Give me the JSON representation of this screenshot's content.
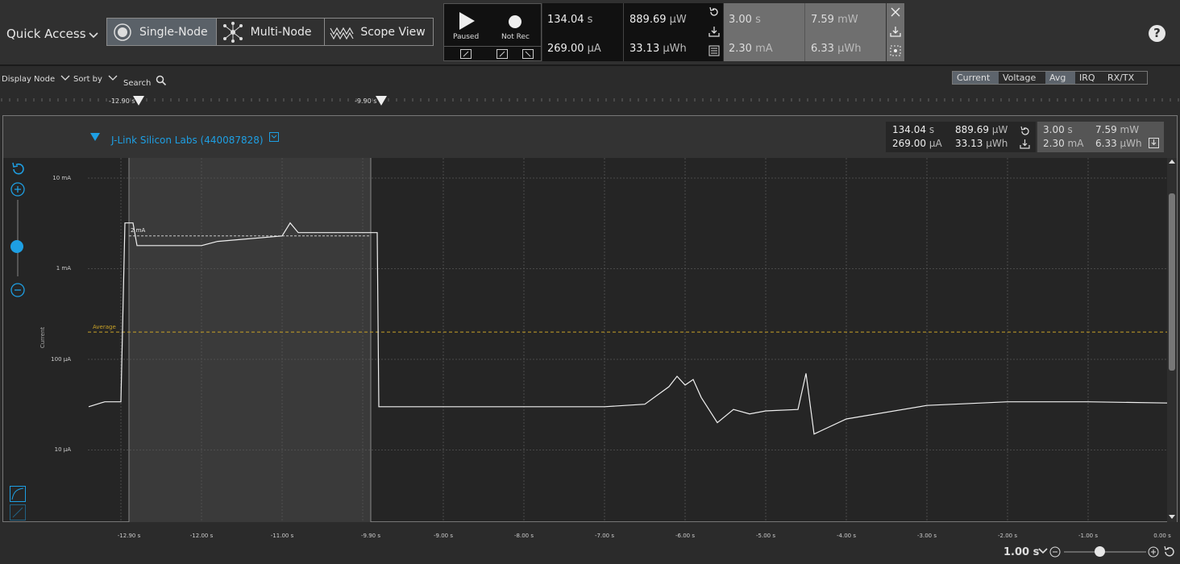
{
  "toolbar": {
    "quick_access": "Quick Access",
    "views": [
      {
        "label": "Single-Node",
        "icon": "single-node-icon",
        "active": true
      },
      {
        "label": "Multi-Node",
        "icon": "multi-node-icon",
        "active": false
      },
      {
        "label": "Scope View",
        "icon": "scope-view-icon",
        "active": false
      }
    ],
    "play_label": "Paused",
    "record_label": "Not Rec",
    "help": "?"
  },
  "measurements": {
    "time_val": "134.04",
    "time_unit": "s",
    "current_val": "269.00",
    "current_unit": "µA",
    "power_val": "889.69",
    "power_unit": "µW",
    "energy_val": "33.13",
    "energy_unit": "µWh",
    "sel_time_val": "3.00",
    "sel_time_unit": "s",
    "sel_power_val": "7.59",
    "sel_power_unit": "mW",
    "sel_current_val": "2.30",
    "sel_current_unit": "mA",
    "sel_energy_val": "6.33",
    "sel_energy_unit": "µWh"
  },
  "toolbar2": {
    "display_node": "Display Node",
    "sort_by": "Sort by",
    "search": "Search",
    "modes": [
      {
        "label": "Current",
        "on": true
      },
      {
        "label": "Voltage",
        "on": false
      },
      {
        "label": "Avg",
        "on": true
      },
      {
        "label": "IRQ",
        "on": false
      },
      {
        "label": "RX/TX",
        "on": false
      }
    ]
  },
  "markers": [
    "-12.90 s",
    "-9.90 s"
  ],
  "node": {
    "title": "J-Link Silicon Labs (440087828)"
  },
  "chart_data": {
    "type": "line",
    "ylabel": "Current",
    "yscale": "log",
    "y_ticks": [
      "10 mA",
      "1 mA",
      "100 µA",
      "10 µA"
    ],
    "x_ticks": [
      "-12.90 s",
      "-12.00 s",
      "-11.00 s",
      "-9.90 s",
      "-9.00 s",
      "-8.00 s",
      "-7.00 s",
      "-6.00 s",
      "-5.00 s",
      "-4.00 s",
      "-3.00 s",
      "-2.00 s",
      "-1.00 s",
      "0.00 s"
    ],
    "annotations": [
      "2 mA",
      "Average"
    ],
    "selection_range": [
      -12.9,
      -9.9
    ],
    "series": [
      {
        "values": [
          [
            -13.4,
            3e-05
          ],
          [
            -13.2,
            3.4e-05
          ],
          [
            -13.0,
            3.4e-05
          ],
          [
            -12.95,
            0.0032
          ],
          [
            -12.85,
            0.0032
          ],
          [
            -12.8,
            0.0018
          ],
          [
            -12.0,
            0.0018
          ],
          [
            -11.8,
            0.002
          ],
          [
            -11.0,
            0.0023
          ],
          [
            -10.9,
            0.0032
          ],
          [
            -10.8,
            0.0025
          ],
          [
            -9.82,
            0.0025
          ],
          [
            -9.8,
            3e-05
          ],
          [
            -8.0,
            3e-05
          ],
          [
            -7.0,
            3e-05
          ],
          [
            -6.5,
            3.2e-05
          ],
          [
            -6.2,
            5e-05
          ],
          [
            -6.1,
            6.5e-05
          ],
          [
            -6.0,
            5.2e-05
          ],
          [
            -5.9,
            6e-05
          ],
          [
            -5.8,
            3.8e-05
          ],
          [
            -5.6,
            2e-05
          ],
          [
            -5.4,
            2.8e-05
          ],
          [
            -5.2,
            2.5e-05
          ],
          [
            -5.0,
            2.7e-05
          ],
          [
            -4.6,
            2.8e-05
          ],
          [
            -4.5,
            7e-05
          ],
          [
            -4.4,
            1.5e-05
          ],
          [
            -4.0,
            2.2e-05
          ],
          [
            -3.0,
            3.1e-05
          ],
          [
            -2.0,
            3.4e-05
          ],
          [
            -1.0,
            3.4e-05
          ],
          [
            0.0,
            3.3e-05
          ]
        ]
      }
    ],
    "average_value": 0.0002,
    "zoom_level": "1.00 s"
  }
}
